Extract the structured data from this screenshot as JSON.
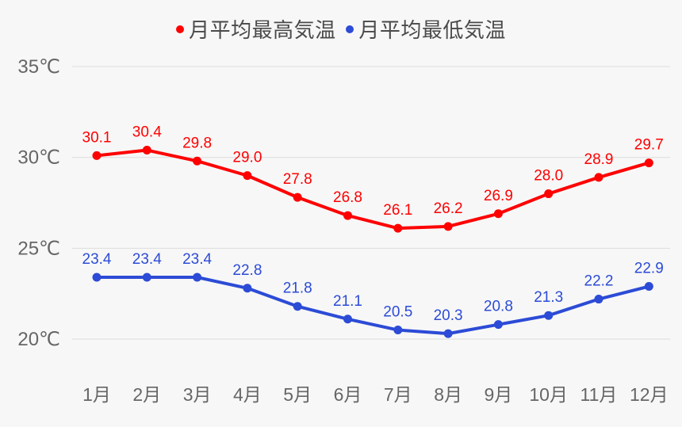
{
  "colors": {
    "background": "#f7f7f7",
    "grid": "#dcdcdc",
    "axis_text": "#666666",
    "high": "#ff0000",
    "low": "#2c4bd6"
  },
  "legend": {
    "items": [
      {
        "label": "月平均最高気温",
        "color": "#ff0000"
      },
      {
        "label": "月平均最低気温",
        "color": "#2c4bd6"
      }
    ]
  },
  "chart_data": {
    "type": "line",
    "title": "",
    "xlabel": "",
    "ylabel": "",
    "categories": [
      "1月",
      "2月",
      "3月",
      "4月",
      "5月",
      "6月",
      "7月",
      "8月",
      "9月",
      "10月",
      "11月",
      "12月"
    ],
    "series": [
      {
        "name": "月平均最高気温",
        "color": "#ff0000",
        "values": [
          30.1,
          30.4,
          29.8,
          29.0,
          27.8,
          26.8,
          26.1,
          26.2,
          26.9,
          28.0,
          28.9,
          29.7
        ]
      },
      {
        "name": "月平均最低気温",
        "color": "#2c4bd6",
        "values": [
          23.4,
          23.4,
          23.4,
          22.8,
          21.8,
          21.1,
          20.5,
          20.3,
          20.8,
          21.3,
          22.2,
          22.9
        ]
      }
    ],
    "yticks": [
      20,
      25,
      30,
      35
    ],
    "ytick_labels": [
      "20℃",
      "25℃",
      "30℃",
      "35℃"
    ],
    "ylim": [
      20,
      35
    ],
    "grid": true,
    "legend_position": "top",
    "data_labels": true
  }
}
